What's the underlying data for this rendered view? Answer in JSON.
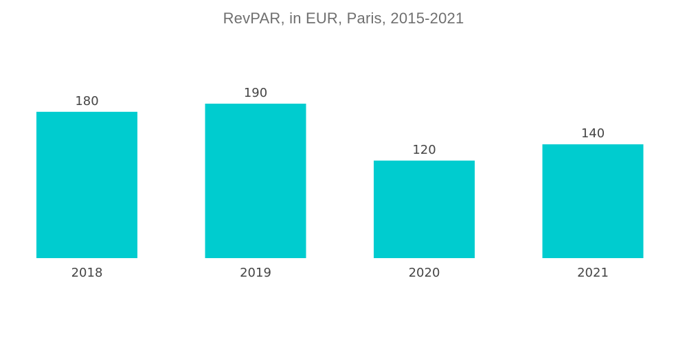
{
  "chart_data": {
    "type": "bar",
    "title": "RevPAR, in EUR, Paris, 2015-2021",
    "categories": [
      "2018",
      "2019",
      "2020",
      "2021"
    ],
    "values": [
      180,
      190,
      120,
      140
    ],
    "ylim": [
      0,
      190
    ],
    "grid": false,
    "data_labels": true,
    "bar_color": "#00cccf",
    "text_color": "#444444",
    "title_color": "#6f6f6f"
  }
}
